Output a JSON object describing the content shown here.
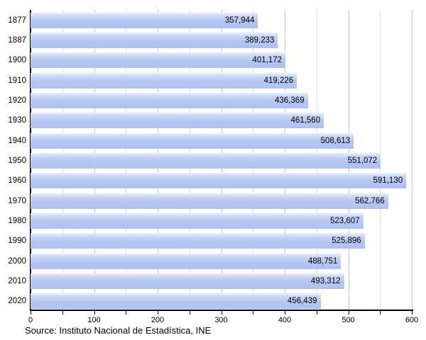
{
  "chart_data": {
    "type": "bar",
    "orientation": "horizontal",
    "title": "",
    "xlabel": "",
    "ylabel": "",
    "categories": [
      "1877",
      "1887",
      "1900",
      "1910",
      "1920",
      "1930",
      "1940",
      "1950",
      "1960",
      "1970",
      "1980",
      "1990",
      "2000",
      "2010",
      "2020"
    ],
    "values": [
      357944,
      389233,
      401172,
      419226,
      436369,
      461560,
      508613,
      551072,
      591130,
      562766,
      523607,
      525896,
      488751,
      493312,
      456439
    ],
    "value_labels": [
      "357,944",
      "389,233",
      "401,172",
      "419,226",
      "436,369",
      "461,560",
      "508,613",
      "551,072",
      "591,130",
      "562,766",
      "523,607",
      "525,896",
      "488,751",
      "493,312",
      "456,439"
    ],
    "xlim": [
      0,
      600000
    ],
    "x_tick_labels": [
      "0",
      "100",
      "200",
      "300",
      "400",
      "500",
      "600"
    ],
    "x_major_tick_step": 100000,
    "x_minor_tick_step": 50000,
    "grid": "vertical",
    "legend": "none",
    "bar_color": "#b4c6f1",
    "bar_highlight_color": "#e9effc",
    "gridline_color": "#c9c9c9",
    "axis_color": "#000000",
    "source": "Source: Instituto Nacional de Estadística, INE"
  }
}
